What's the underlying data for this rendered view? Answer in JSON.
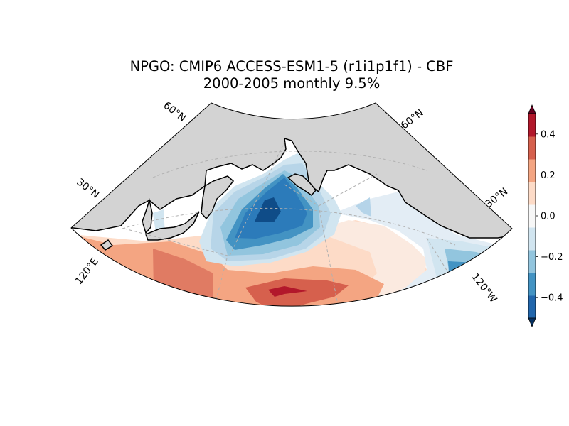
{
  "title": {
    "line1": "NPGO: CMIP6 ACCESS-ESM1-5 (r1i1p1f1) - CBF",
    "line2": "2000-2005 monthly 9.5%"
  },
  "grid_labels": {
    "lat_left_60": "60°N",
    "lat_left_30": "30°N",
    "lat_right_60": "60°N",
    "lat_right_30": "30°N",
    "lon_left": "120°E",
    "lon_right": "120°W"
  },
  "colorbar": {
    "ticks": [
      "0.4",
      "0.2",
      "0.0",
      "−0.2",
      "−0.4"
    ],
    "tick_values": [
      0.4,
      0.2,
      0.0,
      -0.2,
      -0.4
    ],
    "range": [
      -0.5,
      0.5
    ],
    "colors": [
      "#053061",
      "#2166ac",
      "#4393c3",
      "#92c5de",
      "#d1e5f0",
      "#f7f7f7",
      "#fddbc7",
      "#f4a582",
      "#d6604d",
      "#b2182b",
      "#67001f"
    ]
  },
  "colors": {
    "land": "#d3d3d3",
    "ocean_neutral": "#ffffff"
  }
}
